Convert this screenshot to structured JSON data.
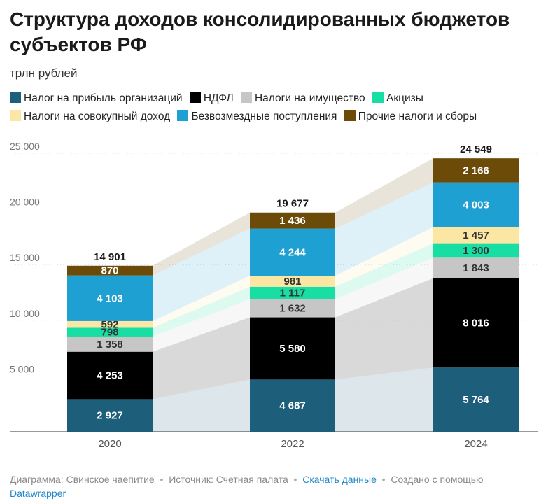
{
  "header": {
    "title": "Структура доходов консолидированных бюджетов субъектов РФ",
    "subtitle": "трлн рублей"
  },
  "legend": [
    {
      "label": "Налог на прибыль организаций",
      "color": "#1d5e7a"
    },
    {
      "label": "НДФЛ",
      "color": "#000000"
    },
    {
      "label": "Налоги на имущество",
      "color": "#c6c6c6"
    },
    {
      "label": "Акцизы",
      "color": "#18dea4"
    },
    {
      "label": "Налоги на совокупный доход",
      "color": "#fbe7a3"
    },
    {
      "label": "Безвозмездные поступления",
      "color": "#1fa0d2"
    },
    {
      "label": "Прочие налоги и сборы",
      "color": "#6c4a08"
    }
  ],
  "chart_data": {
    "type": "bar",
    "stacked": true,
    "categories": [
      "2020",
      "2022",
      "2024"
    ],
    "series": [
      {
        "name": "Налог на прибыль организаций",
        "color": "#1d5e7a",
        "values": [
          2927,
          4687,
          5764
        ],
        "labels": [
          "2 927",
          "4 687",
          "5 764"
        ]
      },
      {
        "name": "НДФЛ",
        "color": "#000000",
        "values": [
          4253,
          5580,
          8016
        ],
        "labels": [
          "4 253",
          "5 580",
          "8 016"
        ]
      },
      {
        "name": "Налоги на имущество",
        "color": "#c6c6c6",
        "values": [
          1358,
          1632,
          1843
        ],
        "labels": [
          "1 358",
          "1 632",
          "1 843"
        ]
      },
      {
        "name": "Акцизы",
        "color": "#18dea4",
        "values": [
          798,
          1117,
          1300
        ],
        "labels": [
          "798",
          "1 117",
          "1 300"
        ]
      },
      {
        "name": "Налоги на совокупный доход",
        "color": "#fbe7a3",
        "values": [
          592,
          981,
          1457
        ],
        "labels": [
          "592",
          "981",
          "1 457"
        ]
      },
      {
        "name": "Безвозмездные поступления",
        "color": "#1fa0d2",
        "values": [
          4103,
          4244,
          4003
        ],
        "labels": [
          "4 103",
          "4 244",
          "4 003"
        ]
      },
      {
        "name": "Прочие налоги и сборы",
        "color": "#6c4a08",
        "values": [
          870,
          1436,
          2166
        ],
        "labels": [
          "870",
          "1 436",
          "2 166"
        ]
      }
    ],
    "totals": [
      14901,
      19677,
      24549
    ],
    "total_labels": [
      "14 901",
      "19 677",
      "24 549"
    ],
    "yticks": [
      5000,
      10000,
      15000,
      20000,
      25000
    ],
    "ytick_labels": [
      "5 000",
      "10 000",
      "15 000",
      "20 000",
      "25 000"
    ],
    "ylim": [
      0,
      25000
    ],
    "grid": true,
    "connectors": true,
    "legend_position": "top"
  },
  "footer": {
    "chart_by": "Диаграмма: Свинское чаепитие",
    "source": "Источник: Счетная палата",
    "download": "Скачать данные",
    "created_with": "Создано с помощью",
    "tool": "Datawrapper"
  }
}
